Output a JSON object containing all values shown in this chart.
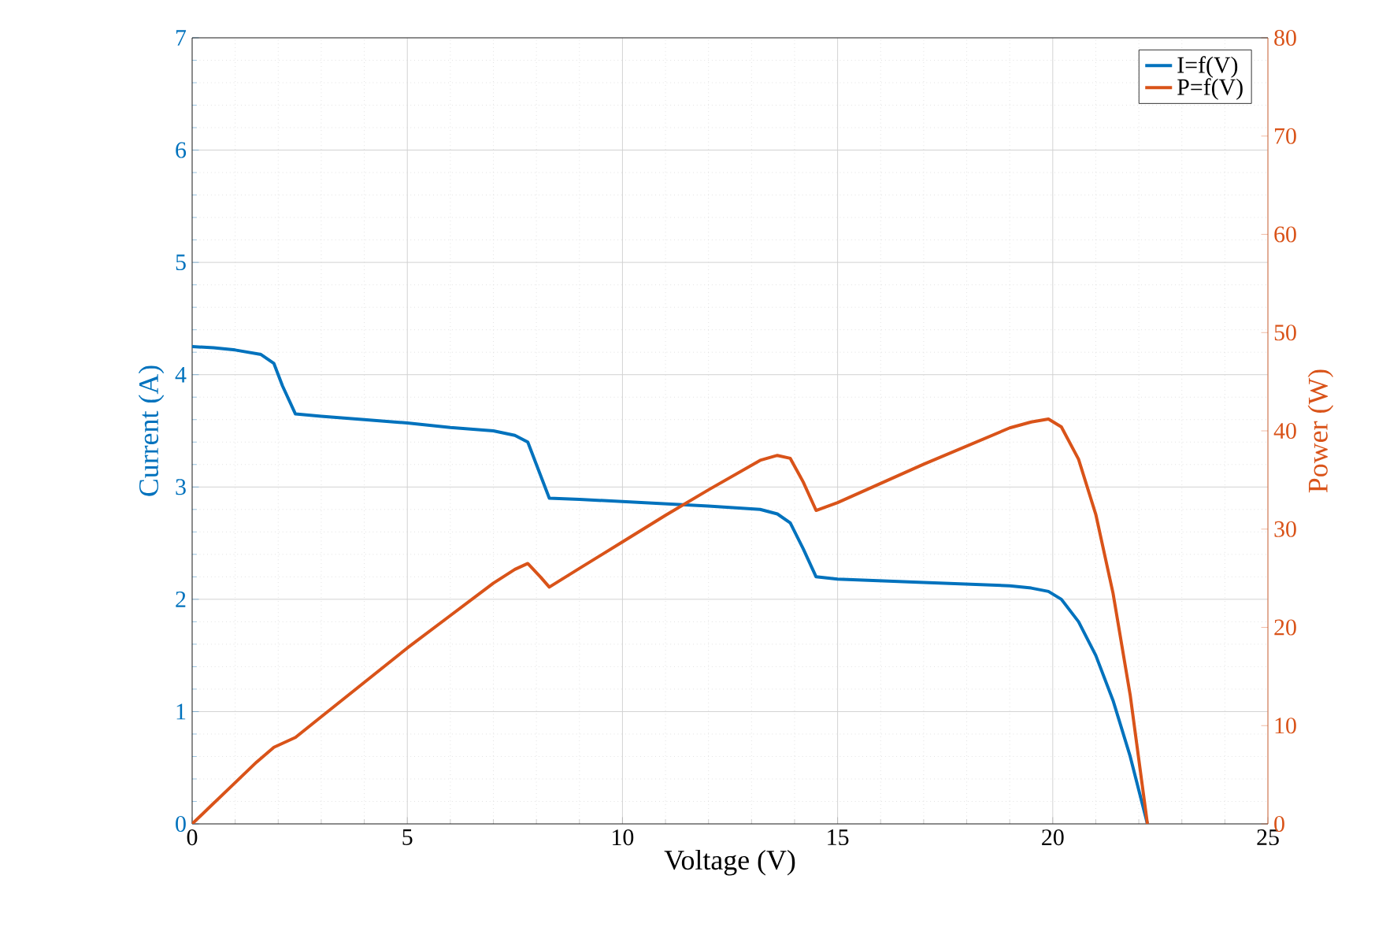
{
  "chart_data": {
    "type": "line",
    "xlabel": "Voltage (V)",
    "ylabel": "Current (A)",
    "y2label": "Power (W)",
    "xlim": [
      0,
      25
    ],
    "xticks": [
      0,
      5,
      10,
      15,
      20,
      25
    ],
    "ylim": [
      0,
      7
    ],
    "yticks": [
      0,
      1,
      2,
      3,
      4,
      5,
      6,
      7
    ],
    "y2lim": [
      0,
      80
    ],
    "y2ticks": [
      0,
      10,
      20,
      30,
      40,
      50,
      60,
      70,
      80
    ],
    "grid": true,
    "legend": "top right",
    "marker": "none",
    "line_style": "solid",
    "series": [
      {
        "name": "I=f(V)",
        "color": "#0072bd",
        "x": [
          0,
          0.5,
          1,
          1.6,
          1.9,
          2.1,
          2.4,
          3,
          4,
          5,
          6,
          7,
          7.5,
          7.8,
          8.1,
          8.3,
          9,
          10,
          11,
          12,
          13.2,
          13.6,
          13.9,
          14.2,
          14.5,
          15,
          17,
          19,
          19.5,
          19.9,
          20.2,
          20.6,
          21,
          21.4,
          21.8,
          22.2
        ],
        "values": [
          4.25,
          4.24,
          4.22,
          4.18,
          4.1,
          3.9,
          3.65,
          3.63,
          3.6,
          3.57,
          3.53,
          3.5,
          3.46,
          3.4,
          3.1,
          2.9,
          2.89,
          2.87,
          2.85,
          2.83,
          2.8,
          2.76,
          2.68,
          2.45,
          2.2,
          2.18,
          2.15,
          2.12,
          2.1,
          2.07,
          2.0,
          1.8,
          1.5,
          1.1,
          0.6,
          0
        ]
      },
      {
        "name": "P=f(V)",
        "color": "#d95319",
        "axis": "y2",
        "x": [
          0,
          0.5,
          1,
          1.5,
          1.9,
          2.1,
          2.4,
          3,
          4,
          5,
          6,
          7,
          7.5,
          7.8,
          8.1,
          8.3,
          9,
          10,
          11,
          12,
          13.2,
          13.6,
          13.9,
          14.2,
          14.5,
          15,
          17,
          19,
          19.5,
          19.9,
          20.2,
          20.6,
          21,
          21.4,
          21.8,
          22.2
        ],
        "values": [
          0,
          2.1,
          4.2,
          6.3,
          7.8,
          8.2,
          8.8,
          10.9,
          14.4,
          17.9,
          21.2,
          24.5,
          25.9,
          26.5,
          25.1,
          24.1,
          26,
          28.7,
          31.4,
          34,
          37,
          37.5,
          37.2,
          34.8,
          31.9,
          32.7,
          36.6,
          40.3,
          40.9,
          41.2,
          40.4,
          37.1,
          31.5,
          23.5,
          13.1,
          0
        ]
      }
    ]
  }
}
